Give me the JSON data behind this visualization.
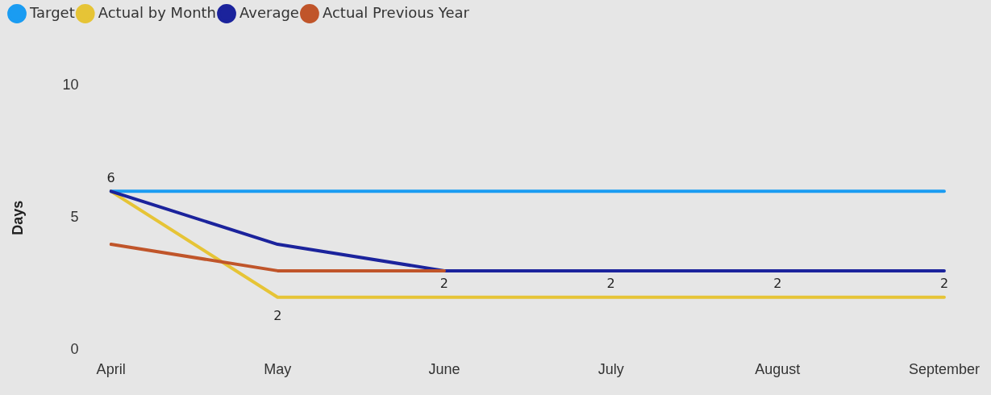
{
  "chart_data": {
    "type": "line",
    "ylabel": "Days",
    "categories": [
      "April",
      "May",
      "June",
      "July",
      "August",
      "September"
    ],
    "ylim": [
      0,
      10
    ],
    "yticks": [
      0,
      5,
      10
    ],
    "grid": false,
    "legend": "top left",
    "marker": "none",
    "line_style": "solid",
    "series": [
      {
        "name": "Target",
        "color": "#1a9cf2",
        "values": [
          6,
          6,
          6,
          6,
          6,
          6
        ]
      },
      {
        "name": "Actual by Month",
        "color": "#e6c436",
        "values": [
          6,
          2,
          2,
          2,
          2,
          2
        ],
        "value_labels": [
          "6",
          "2",
          "2",
          "2",
          "2",
          "2"
        ]
      },
      {
        "name": "Average",
        "color": "#1b239c",
        "values": [
          6,
          4,
          3,
          3,
          3,
          3
        ]
      },
      {
        "name": "Actual Previous Year",
        "color": "#c0552a",
        "values": [
          4,
          3,
          3,
          null,
          null,
          null
        ]
      }
    ]
  }
}
